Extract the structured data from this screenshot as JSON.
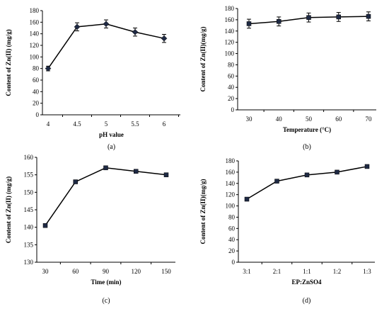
{
  "chart_data": [
    {
      "type": "line",
      "panel_label": "(a)",
      "categories": [
        "4",
        "4.5",
        "5",
        "5.5",
        "6"
      ],
      "values": [
        80,
        152,
        157,
        143,
        132
      ],
      "errors": [
        4,
        7,
        7,
        7,
        7
      ],
      "xlabel": "pH value",
      "ylabel": "Content of Zn(II) (mg/g)",
      "ylim": [
        0,
        180
      ],
      "yticks": [
        0,
        20,
        40,
        60,
        80,
        100,
        120,
        140,
        160,
        180
      ],
      "marker": "diamond",
      "grid": false
    },
    {
      "type": "line",
      "panel_label": "(b)",
      "categories": [
        "30",
        "40",
        "50",
        "60",
        "70"
      ],
      "values": [
        153,
        157,
        164,
        165,
        166
      ],
      "errors": [
        8,
        8,
        8,
        8,
        8
      ],
      "xlabel": "Temperature (°C)",
      "ylabel": "Content of Zn(II)(mg/g)",
      "ylim": [
        0,
        180
      ],
      "yticks": [
        0,
        20,
        40,
        60,
        80,
        100,
        120,
        140,
        160,
        180
      ],
      "marker": "square",
      "grid": false
    },
    {
      "type": "line",
      "panel_label": "(c)",
      "categories": [
        "30",
        "60",
        "90",
        "120",
        "150"
      ],
      "values": [
        140.5,
        153,
        157,
        156,
        155
      ],
      "errors": [
        0.3,
        0.3,
        0.3,
        0.3,
        0.3
      ],
      "xlabel": "Time (min)",
      "ylabel": "Content of Zn(II) (mg/g)",
      "ylim": [
        130,
        160
      ],
      "yticks": [
        130,
        135,
        140,
        145,
        150,
        155,
        160
      ],
      "marker": "square",
      "grid": false
    },
    {
      "type": "line",
      "panel_label": "(d)",
      "categories": [
        "3:1",
        "2:1",
        "1:1",
        "1:2",
        "1:3"
      ],
      "values": [
        112,
        144,
        155,
        160,
        170
      ],
      "errors": [
        2,
        2,
        2,
        2,
        2
      ],
      "xlabel": "EP:ZnSO4",
      "ylabel": "Content of Zn(II)(mg/g)",
      "ylim": [
        0,
        180
      ],
      "yticks": [
        0,
        20,
        40,
        60,
        80,
        100,
        120,
        140,
        160,
        180
      ],
      "marker": "square",
      "grid": false
    }
  ]
}
